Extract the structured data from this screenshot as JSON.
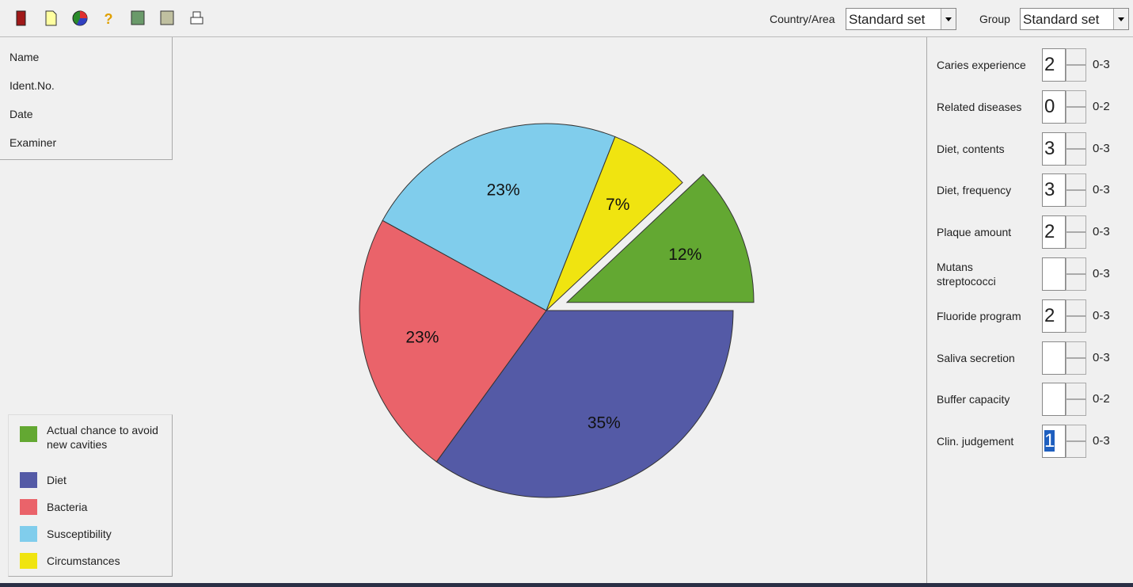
{
  "toolbar": {
    "country_label": "Country/Area",
    "country_value": "Standard set",
    "group_label": "Group",
    "group_value": "Standard set"
  },
  "patient_fields": [
    "Name",
    "Ident.No.",
    "Date",
    "Examiner"
  ],
  "chart_data": {
    "type": "pie",
    "categories": [
      "Actual chance to avoid new cavities",
      "Diet",
      "Bacteria",
      "Susceptibility",
      "Circumstances"
    ],
    "values": [
      12,
      35,
      23,
      23,
      7
    ],
    "value_labels": [
      "12%",
      "35%",
      "23%",
      "23%",
      "7%"
    ],
    "colors": [
      "#63a832",
      "#545aa6",
      "#ea636a",
      "#80cdec",
      "#f0e410"
    ]
  },
  "factors": [
    {
      "label": "Caries experience",
      "value": 2,
      "range": "0-3"
    },
    {
      "label": "Related diseases",
      "value": 0,
      "range": "0-2"
    },
    {
      "label": "Diet, contents",
      "value": 3,
      "range": "0-3"
    },
    {
      "label": "Diet, frequency",
      "value": 3,
      "range": "0-3"
    },
    {
      "label": "Plaque amount",
      "value": 2,
      "range": "0-3"
    },
    {
      "label": "Mutans streptococci",
      "value": null,
      "range": "0-3"
    },
    {
      "label": "Fluoride program",
      "value": 2,
      "range": "0-3"
    },
    {
      "label": "Saliva secretion",
      "value": null,
      "range": "0-3"
    },
    {
      "label": "Buffer capacity",
      "value": null,
      "range": "0-2"
    },
    {
      "label": "Clin. judgement",
      "value": 1,
      "range": "0-3"
    }
  ]
}
